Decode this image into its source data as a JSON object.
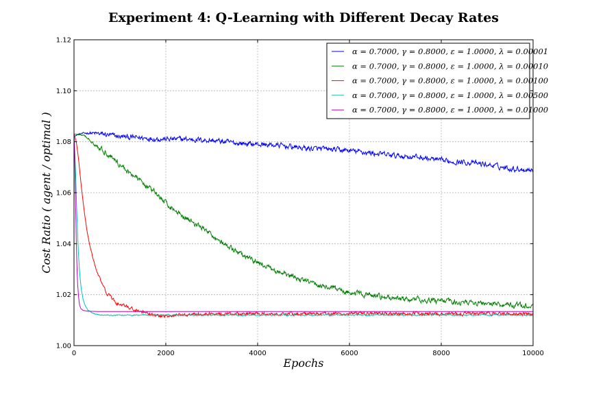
{
  "chart_data": {
    "type": "line",
    "title": "Experiment 4: Q-Learning with Different Decay Rates",
    "xlabel": "Epochs",
    "ylabel": "Cost Ratio ( agent / optimal )",
    "xlim": [
      0,
      10000
    ],
    "ylim": [
      1.0,
      1.12
    ],
    "xticks": [
      0,
      2000,
      4000,
      6000,
      8000,
      10000
    ],
    "yticks": [
      1.0,
      1.02,
      1.04,
      1.06,
      1.08,
      1.1,
      1.12
    ],
    "xtick_labels": [
      "0",
      "2000",
      "4000",
      "6000",
      "8000",
      "10000"
    ],
    "ytick_labels": [
      "1.00",
      "1.02",
      "1.04",
      "1.06",
      "1.08",
      "1.10",
      "1.12"
    ],
    "grid": true,
    "legend_position": "top-right",
    "series": [
      {
        "name": "α = 0.7000, γ = 0.8000, ε = 1.0000, λ = 0.00001",
        "color": "#0000ff",
        "noise": 0.0012,
        "x": [
          0,
          100,
          300,
          600,
          1000,
          1500,
          2000,
          2500,
          3000,
          3500,
          4000,
          4500,
          5000,
          5500,
          6000,
          6500,
          7000,
          7500,
          8000,
          8500,
          9000,
          9500,
          10000
        ],
        "y": [
          1.082,
          1.083,
          1.0835,
          1.083,
          1.082,
          1.0815,
          1.081,
          1.081,
          1.0805,
          1.0795,
          1.079,
          1.0785,
          1.0775,
          1.077,
          1.0765,
          1.0755,
          1.0745,
          1.074,
          1.0725,
          1.072,
          1.071,
          1.0695,
          1.069
        ]
      },
      {
        "name": "α = 0.7000, γ = 0.8000, ε = 1.0000, λ = 0.00010",
        "color": "#008000",
        "noise": 0.0012,
        "x": [
          0,
          200,
          400,
          600,
          800,
          1000,
          1200,
          1500,
          1800,
          2000,
          2200,
          2500,
          2800,
          3000,
          3300,
          3600,
          4000,
          4500,
          5000,
          5500,
          6000,
          6500,
          7000,
          7500,
          8000,
          8500,
          9000,
          9500,
          10000
        ],
        "y": [
          1.083,
          1.0825,
          1.08,
          1.077,
          1.0745,
          1.071,
          1.068,
          1.064,
          1.0595,
          1.056,
          1.053,
          1.0495,
          1.046,
          1.0435,
          1.0395,
          1.036,
          1.0325,
          1.0285,
          1.0255,
          1.023,
          1.021,
          1.0195,
          1.0185,
          1.018,
          1.0175,
          1.017,
          1.0165,
          1.016,
          1.0155
        ]
      },
      {
        "name": "α = 0.7000, γ = 0.8000, ε = 1.0000, λ = 0.00100",
        "color": "#ff0000",
        "noise": 0.0008,
        "x": [
          0,
          50,
          100,
          150,
          200,
          250,
          300,
          400,
          500,
          600,
          700,
          800,
          900,
          1000,
          1200,
          1400,
          1500,
          1700,
          1900,
          2000,
          2200,
          2500,
          3000,
          5000,
          8000,
          10000
        ],
        "y": [
          1.083,
          1.08,
          1.073,
          1.064,
          1.056,
          1.049,
          1.043,
          1.035,
          1.029,
          1.0245,
          1.021,
          1.019,
          1.017,
          1.016,
          1.015,
          1.0135,
          1.013,
          1.012,
          1.0115,
          1.0115,
          1.012,
          1.0122,
          1.0125,
          1.0125,
          1.0125,
          1.0125
        ]
      },
      {
        "name": "α = 0.7000, γ = 0.8000, ε = 1.0000, λ = 0.00500",
        "color": "#00bfbf",
        "noise": 0.0003,
        "x": [
          0,
          20,
          40,
          60,
          80,
          100,
          130,
          160,
          200,
          250,
          300,
          400,
          500,
          600,
          800,
          1000,
          2000,
          5000,
          10000
        ],
        "y": [
          1.083,
          1.075,
          1.065,
          1.053,
          1.043,
          1.035,
          1.027,
          1.022,
          1.018,
          1.0155,
          1.014,
          1.0128,
          1.0122,
          1.012,
          1.012,
          1.012,
          1.012,
          1.012,
          1.012
        ]
      },
      {
        "name": "α = 0.7000, γ = 0.8000, ε = 1.0000, λ = 0.01000",
        "color": "#bf00bf",
        "noise": 0.0,
        "x": [
          0,
          10,
          20,
          30,
          40,
          50,
          60,
          70,
          80,
          100,
          120,
          150,
          200,
          300,
          500,
          1000,
          10000
        ],
        "y": [
          1.083,
          1.078,
          1.07,
          1.06,
          1.05,
          1.041,
          1.034,
          1.028,
          1.024,
          1.019,
          1.016,
          1.0145,
          1.0138,
          1.0135,
          1.0134,
          1.0134,
          1.0134
        ]
      }
    ]
  }
}
